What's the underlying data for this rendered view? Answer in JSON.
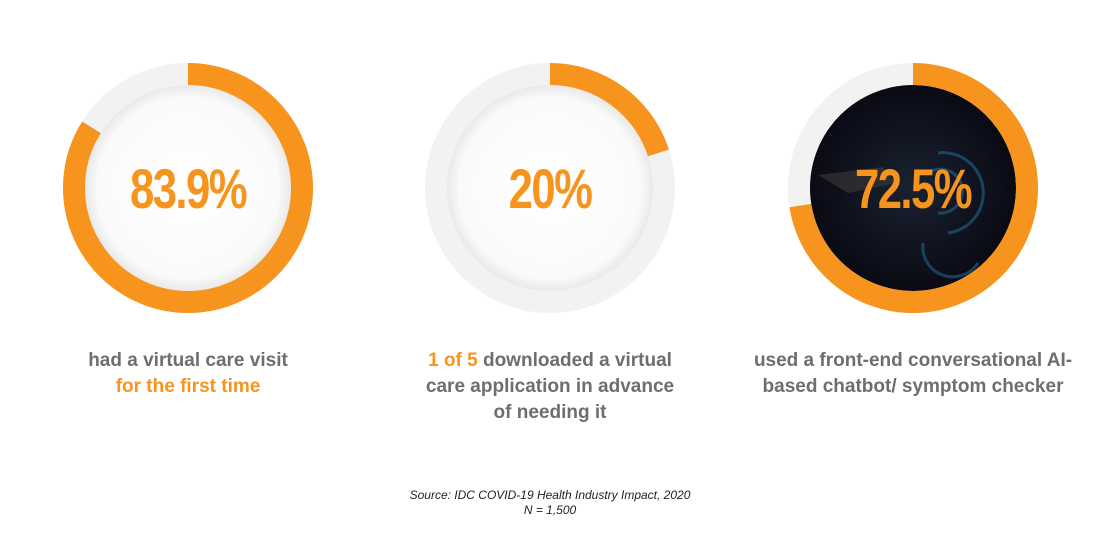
{
  "colors": {
    "accent": "#f7941d",
    "track": "#f2f2f2",
    "inner": "#ffffff",
    "inner_dark": "#0a0a14",
    "caption_text": "#6d6e71",
    "source_text": "#231f20"
  },
  "chart_data": [
    {
      "type": "pie",
      "value": 83.9,
      "label": "83.9%",
      "inner_style": "light",
      "caption": [
        {
          "text": "had a virtual care visit",
          "accent": false
        },
        {
          "text": "for the first time",
          "accent": true
        }
      ]
    },
    {
      "type": "pie",
      "value": 20,
      "label": "20%",
      "inner_style": "light",
      "caption": [
        {
          "text": "1 of 5",
          "accent": true
        },
        {
          "text": " downloaded a virtual care application in advance of needing it",
          "accent": false
        }
      ]
    },
    {
      "type": "pie",
      "value": 72.5,
      "label": "72.5%",
      "inner_style": "dark-photo",
      "caption": [
        {
          "text": "used a front-end conversational AI-based chatbot/ symptom checker",
          "accent": false
        }
      ]
    }
  ],
  "source": {
    "line1": "Source: IDC COVID-19 Health Industry Impact, 2020",
    "line2": "N = 1,500"
  }
}
